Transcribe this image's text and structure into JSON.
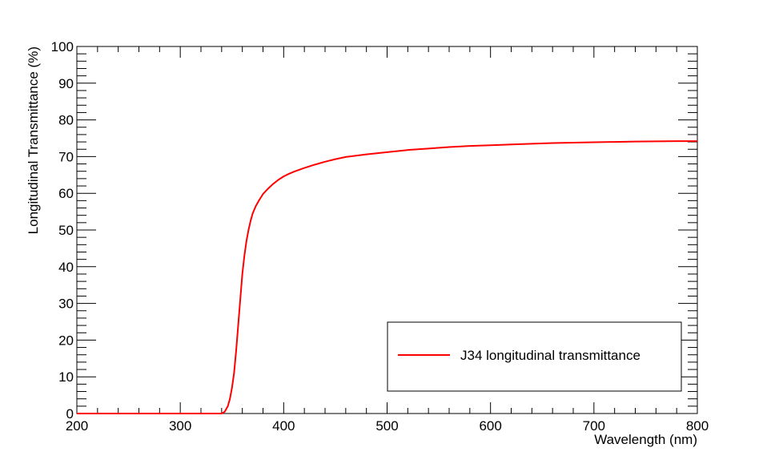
{
  "chart_data": {
    "type": "line",
    "title": "",
    "xlabel": "Wavelength (nm)",
    "ylabel": "Longitudinal Transmittance (%)",
    "xlim": [
      200,
      800
    ],
    "ylim": [
      0,
      100
    ],
    "xticks": [
      200,
      300,
      400,
      500,
      600,
      700,
      800
    ],
    "yticks": [
      0,
      10,
      20,
      30,
      40,
      50,
      60,
      70,
      80,
      90,
      100
    ],
    "grid": false,
    "legend_position": "bottom-right",
    "series": [
      {
        "name": "J34 longitudinal transmittance",
        "color": "#ff0000",
        "x": [
          200,
          250,
          300,
          330,
          340,
          343,
          346,
          348,
          350,
          352,
          354,
          356,
          358,
          360,
          362,
          364,
          366,
          368,
          370,
          373,
          376,
          380,
          385,
          390,
          395,
          400,
          405,
          410,
          420,
          430,
          440,
          450,
          460,
          480,
          500,
          520,
          540,
          560,
          580,
          600,
          620,
          640,
          660,
          680,
          700,
          720,
          740,
          760,
          780,
          800
        ],
        "y": [
          0,
          0,
          0,
          0,
          0,
          0.5,
          2,
          4,
          7,
          11,
          17,
          24,
          31,
          38,
          43,
          47,
          50,
          52.5,
          54.5,
          56.5,
          58,
          59.8,
          61.3,
          62.6,
          63.7,
          64.6,
          65.3,
          65.9,
          66.9,
          67.8,
          68.6,
          69.3,
          69.9,
          70.6,
          71.2,
          71.8,
          72.2,
          72.6,
          72.9,
          73.1,
          73.3,
          73.5,
          73.7,
          73.8,
          73.9,
          74.0,
          74.1,
          74.15,
          74.2,
          74.2
        ]
      }
    ]
  }
}
